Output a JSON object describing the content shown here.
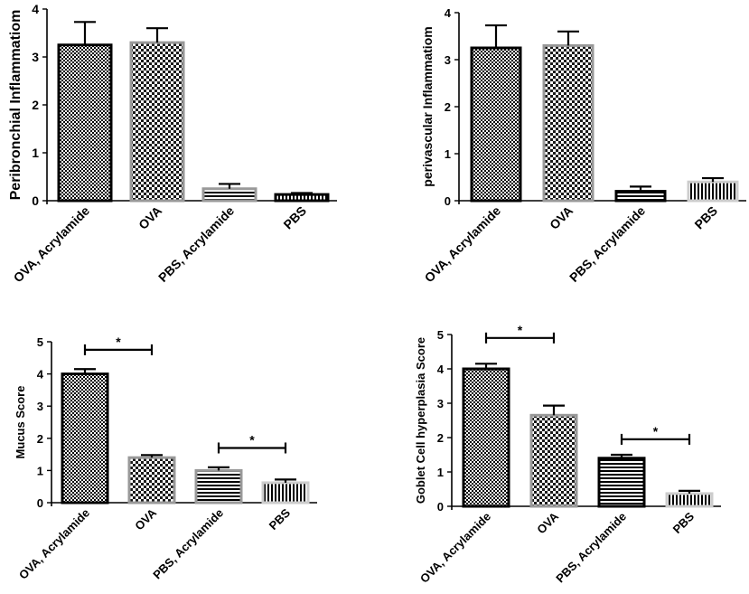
{
  "chart_data": [
    {
      "type": "bar",
      "ylabel": "Peribronchial Inflammatiom",
      "ylim": [
        0,
        4
      ],
      "yticks": [
        0,
        1,
        2,
        3,
        4
      ],
      "categories": [
        "OVA, Acrylamide",
        "OVA",
        "PBS, Acrylamide",
        "PBS"
      ],
      "values": [
        3.25,
        3.3,
        0.25,
        0.13
      ],
      "errors": [
        0.48,
        0.3,
        0.1,
        0.03
      ],
      "patterns": [
        "checker-fine",
        "checker-coarse",
        "hlines",
        "vlines"
      ],
      "outline_colors": [
        "#000000",
        "#999999",
        "#999999",
        "#000000"
      ],
      "significance": []
    },
    {
      "type": "bar",
      "ylabel": "perivascular Inflammatiom",
      "ylim": [
        0,
        4
      ],
      "yticks": [
        0,
        1,
        2,
        3,
        4
      ],
      "categories": [
        "OVA, Acrylamide",
        "OVA",
        "PBS, Acrylamide",
        "PBS"
      ],
      "values": [
        3.25,
        3.3,
        0.2,
        0.4
      ],
      "errors": [
        0.48,
        0.3,
        0.1,
        0.08
      ],
      "patterns": [
        "checker-fine",
        "checker-coarse",
        "hlines",
        "vlines"
      ],
      "outline_colors": [
        "#000000",
        "#999999",
        "#000000",
        "#cccccc"
      ],
      "significance": []
    },
    {
      "type": "bar",
      "ylabel": "Mucus Score",
      "ylim": [
        0,
        5
      ],
      "yticks": [
        0,
        1,
        2,
        3,
        4,
        5
      ],
      "categories": [
        "OVA, Acrylamide",
        "OVA",
        "PBS, Acrylamide",
        "PBS"
      ],
      "values": [
        4.0,
        1.4,
        1.0,
        0.62
      ],
      "errors": [
        0.15,
        0.08,
        0.1,
        0.1
      ],
      "patterns": [
        "checker-fine",
        "checker-coarse",
        "hlines",
        "vlines"
      ],
      "outline_colors": [
        "#000000",
        "#999999",
        "#999999",
        "#cccccc"
      ],
      "significance": [
        {
          "from": 0,
          "to": 1,
          "y": 4.75,
          "label": "*"
        },
        {
          "from": 2,
          "to": 3,
          "y": 1.7,
          "label": "*"
        }
      ]
    },
    {
      "type": "bar",
      "ylabel": "Goblet Cell hyperplasia Score",
      "ylim": [
        0,
        5
      ],
      "yticks": [
        0,
        1,
        2,
        3,
        4,
        5
      ],
      "categories": [
        "OVA, Acrylamide",
        "OVA",
        "PBS, Acrylamide",
        "PBS"
      ],
      "values": [
        4.0,
        2.65,
        1.4,
        0.37
      ],
      "errors": [
        0.15,
        0.28,
        0.1,
        0.08
      ],
      "patterns": [
        "checker-fine",
        "checker-coarse",
        "hlines",
        "vlines"
      ],
      "outline_colors": [
        "#000000",
        "#999999",
        "#000000",
        "#cccccc"
      ],
      "significance": [
        {
          "from": 0,
          "to": 1,
          "y": 4.9,
          "label": "*"
        },
        {
          "from": 2,
          "to": 3,
          "y": 1.95,
          "label": "*"
        }
      ]
    }
  ]
}
